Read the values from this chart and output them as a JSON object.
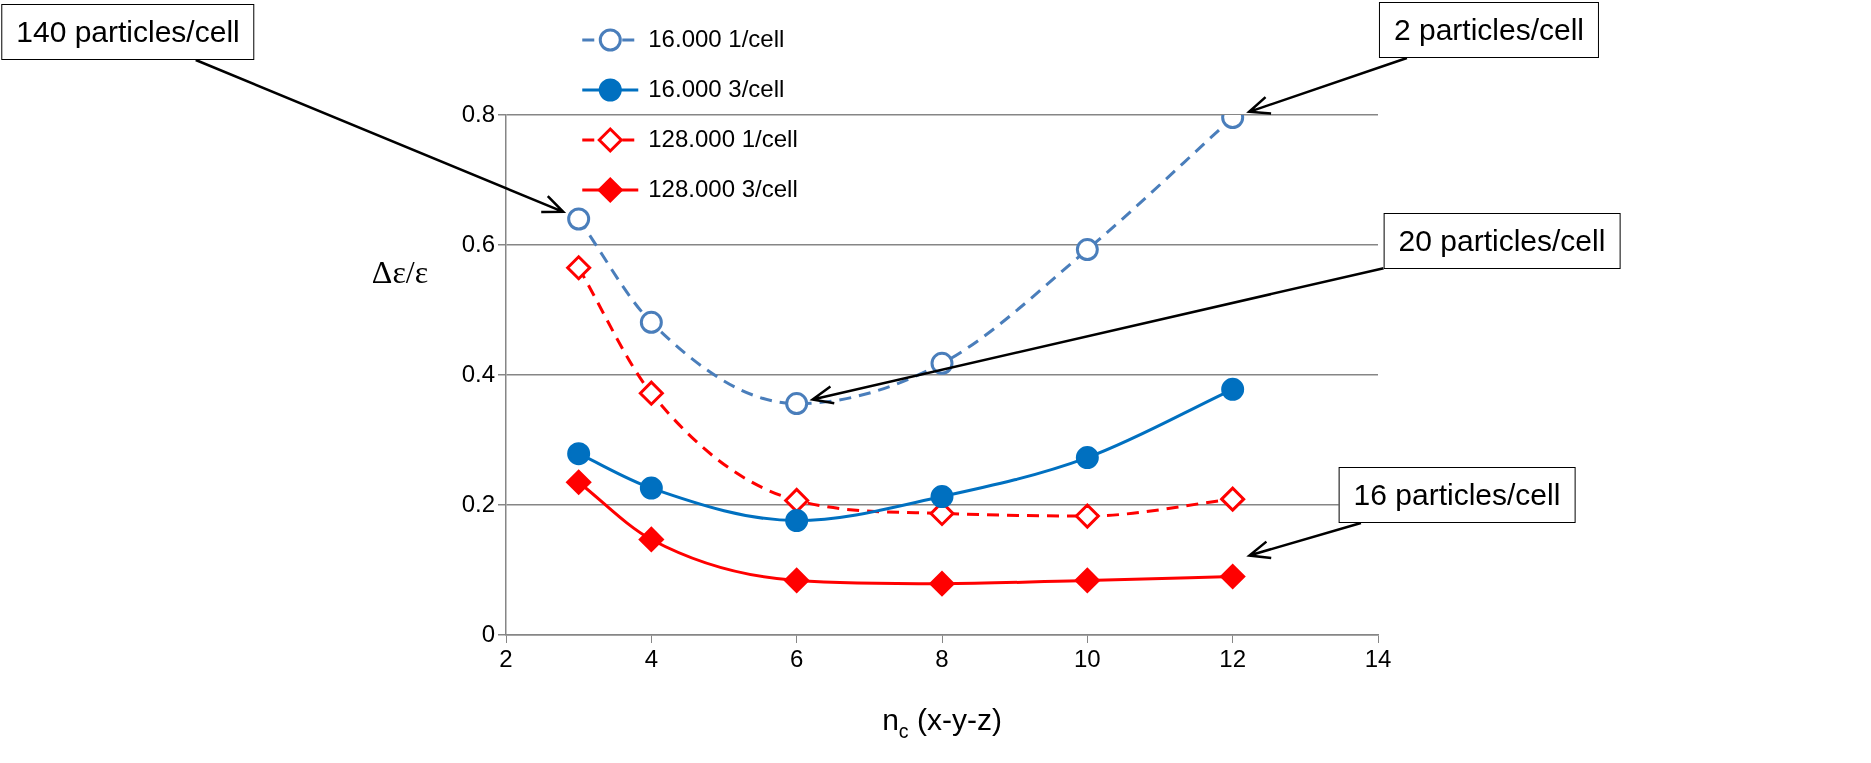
{
  "chart_data": {
    "type": "line",
    "x": [
      3,
      4,
      6,
      8,
      10,
      12
    ],
    "series": [
      {
        "name": "16.000 1/cell",
        "color": "#4a7ebb",
        "marker": "circle",
        "line_style": "dashed",
        "values": [
          0.64,
          0.481,
          0.356,
          0.418,
          0.593,
          0.796
        ]
      },
      {
        "name": "16.000 3/cell",
        "color": "#0070c0",
        "marker": "circle",
        "line_style": "solid",
        "values": [
          0.279,
          0.226,
          0.176,
          0.213,
          0.273,
          0.378
        ]
      },
      {
        "name": "128.000 1/cell",
        "color": "#ff0000",
        "marker": "diamond",
        "line_style": "dashed",
        "values": [
          0.565,
          0.372,
          0.207,
          0.187,
          0.183,
          0.209
        ]
      },
      {
        "name": "128.000 3/cell",
        "color": "#ff0000",
        "marker": "diamond",
        "line_style": "solid",
        "values": [
          0.235,
          0.147,
          0.084,
          0.079,
          0.084,
          0.09
        ]
      }
    ],
    "xlim": [
      2,
      14
    ],
    "xticks": [
      2,
      4,
      6,
      8,
      10,
      12,
      14
    ],
    "ylim": [
      0,
      0.8
    ],
    "yticks": [
      0,
      0.2,
      0.4,
      0.6,
      0.8
    ],
    "xlabel": "n$_{c}$ (x-y-z)",
    "ylabel": "Δε/ε",
    "grid": "y",
    "legend": "top left",
    "annotations": [
      "140 particles/cell",
      "2 particles/cell",
      "20 particles/cell",
      "16 particles/cell"
    ]
  }
}
